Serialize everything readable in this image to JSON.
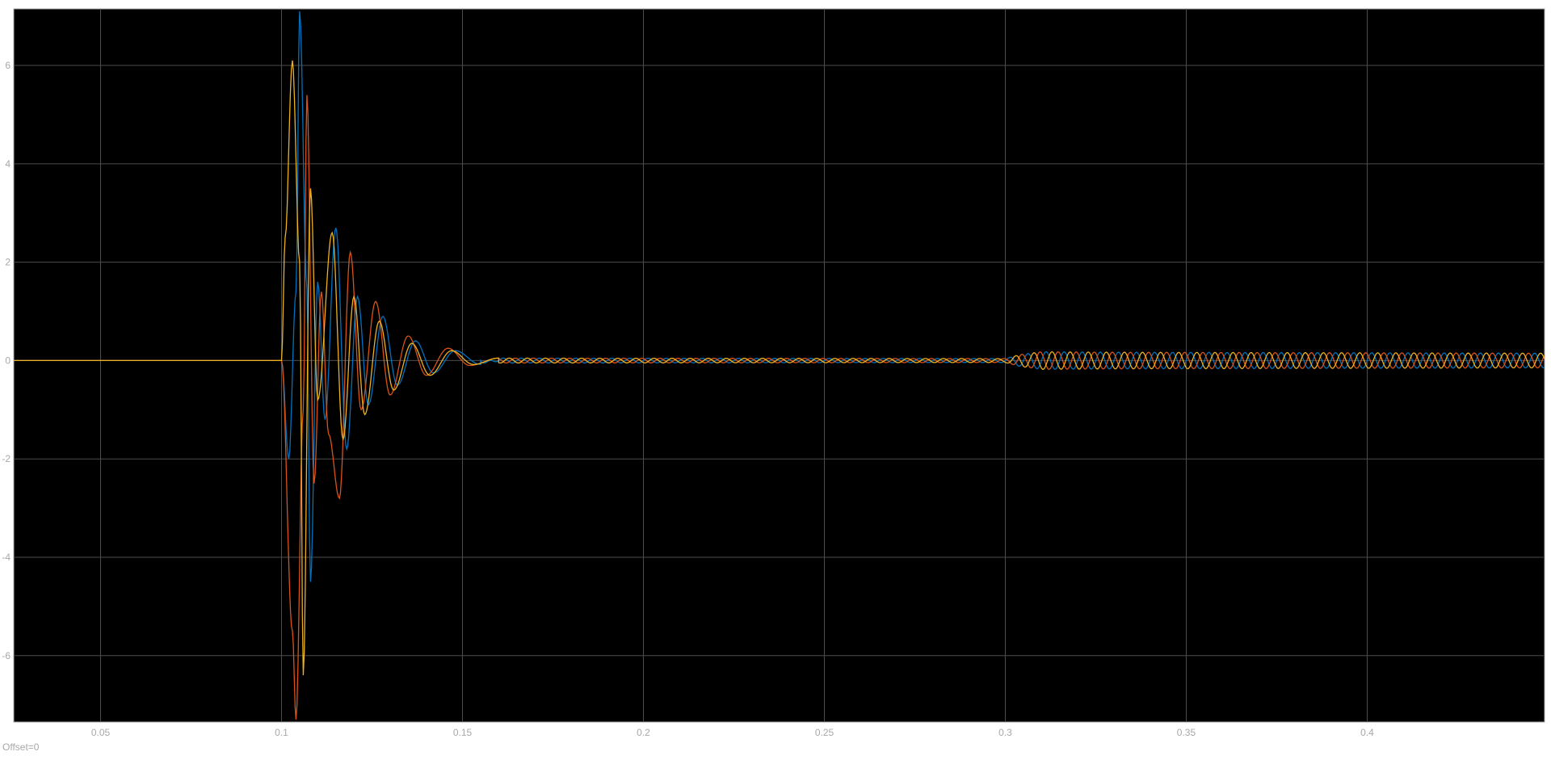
{
  "footer": {
    "offset_label": "Offset=0"
  },
  "chart_data": {
    "type": "line",
    "title": "",
    "xlabel": "",
    "ylabel": "",
    "xlim": [
      0.026,
      0.449
    ],
    "ylim": [
      -7.35,
      7.15
    ],
    "x_ticks": [
      0.05,
      0.1,
      0.15,
      0.2,
      0.25,
      0.3,
      0.35,
      0.4
    ],
    "x_tick_labels": [
      "0.05",
      "0.1",
      "0.15",
      "0.2",
      "0.25",
      "0.3",
      "0.35",
      "0.4"
    ],
    "y_ticks": [
      -6,
      -4,
      -2,
      0,
      2,
      4,
      6
    ],
    "y_tick_labels": [
      "-6",
      "-4",
      "-2",
      "0",
      "2",
      "4",
      "6"
    ],
    "grid": true,
    "legend": "none",
    "background_color": "#000000",
    "grid_color": "#4d4d4d",
    "axis_color": "#a8a8a8",
    "series": [
      {
        "color": "#0072BD",
        "points": [
          [
            0.026,
            0
          ],
          [
            0.1,
            0
          ],
          [
            0.102,
            -2.0
          ],
          [
            0.104,
            1.4
          ],
          [
            0.105,
            7.1
          ],
          [
            0.107,
            1.5
          ],
          [
            0.108,
            -4.5
          ],
          [
            0.11,
            1.6
          ],
          [
            0.112,
            -1.2
          ],
          [
            0.115,
            2.7
          ],
          [
            0.118,
            -1.8
          ],
          [
            0.121,
            1.3
          ],
          [
            0.124,
            -0.9
          ],
          [
            0.128,
            0.9
          ],
          [
            0.132,
            -0.5
          ],
          [
            0.137,
            0.4
          ],
          [
            0.142,
            -0.25
          ],
          [
            0.148,
            0.2
          ],
          [
            0.155,
            -0.08
          ],
          [
            0.16,
            0.05
          ],
          [
            0.3,
            0.04
          ],
          [
            0.304,
            0.12
          ],
          [
            0.31,
            0.18
          ],
          [
            0.33,
            0.17
          ],
          [
            0.449,
            0.15
          ]
        ]
      },
      {
        "color": "#D95319",
        "points": [
          [
            0.026,
            0
          ],
          [
            0.1,
            0
          ],
          [
            0.103,
            -5.5
          ],
          [
            0.104,
            -7.3
          ],
          [
            0.106,
            -1.0
          ],
          [
            0.107,
            5.4
          ],
          [
            0.109,
            -2.5
          ],
          [
            0.111,
            1.4
          ],
          [
            0.113,
            -1.5
          ],
          [
            0.116,
            -2.8
          ],
          [
            0.119,
            2.2
          ],
          [
            0.122,
            -1.0
          ],
          [
            0.126,
            1.2
          ],
          [
            0.13,
            -0.7
          ],
          [
            0.135,
            0.5
          ],
          [
            0.14,
            -0.3
          ],
          [
            0.146,
            0.25
          ],
          [
            0.152,
            -0.1
          ],
          [
            0.16,
            0.05
          ],
          [
            0.3,
            0.04
          ],
          [
            0.304,
            0.12
          ],
          [
            0.31,
            0.18
          ],
          [
            0.33,
            0.17
          ],
          [
            0.449,
            0.15
          ]
        ]
      },
      {
        "color": "#EDB120",
        "points": [
          [
            0.026,
            0
          ],
          [
            0.1,
            0
          ],
          [
            0.101,
            2.5
          ],
          [
            0.103,
            6.1
          ],
          [
            0.105,
            2.0
          ],
          [
            0.106,
            -6.4
          ],
          [
            0.108,
            3.5
          ],
          [
            0.11,
            -0.8
          ],
          [
            0.114,
            2.6
          ],
          [
            0.117,
            -1.6
          ],
          [
            0.12,
            1.3
          ],
          [
            0.123,
            -1.1
          ],
          [
            0.127,
            0.8
          ],
          [
            0.131,
            -0.6
          ],
          [
            0.136,
            0.35
          ],
          [
            0.141,
            -0.3
          ],
          [
            0.147,
            0.2
          ],
          [
            0.153,
            -0.08
          ],
          [
            0.16,
            0.05
          ],
          [
            0.3,
            0.04
          ],
          [
            0.304,
            0.12
          ],
          [
            0.31,
            0.18
          ],
          [
            0.33,
            0.17
          ],
          [
            0.449,
            0.15
          ]
        ]
      }
    ]
  }
}
